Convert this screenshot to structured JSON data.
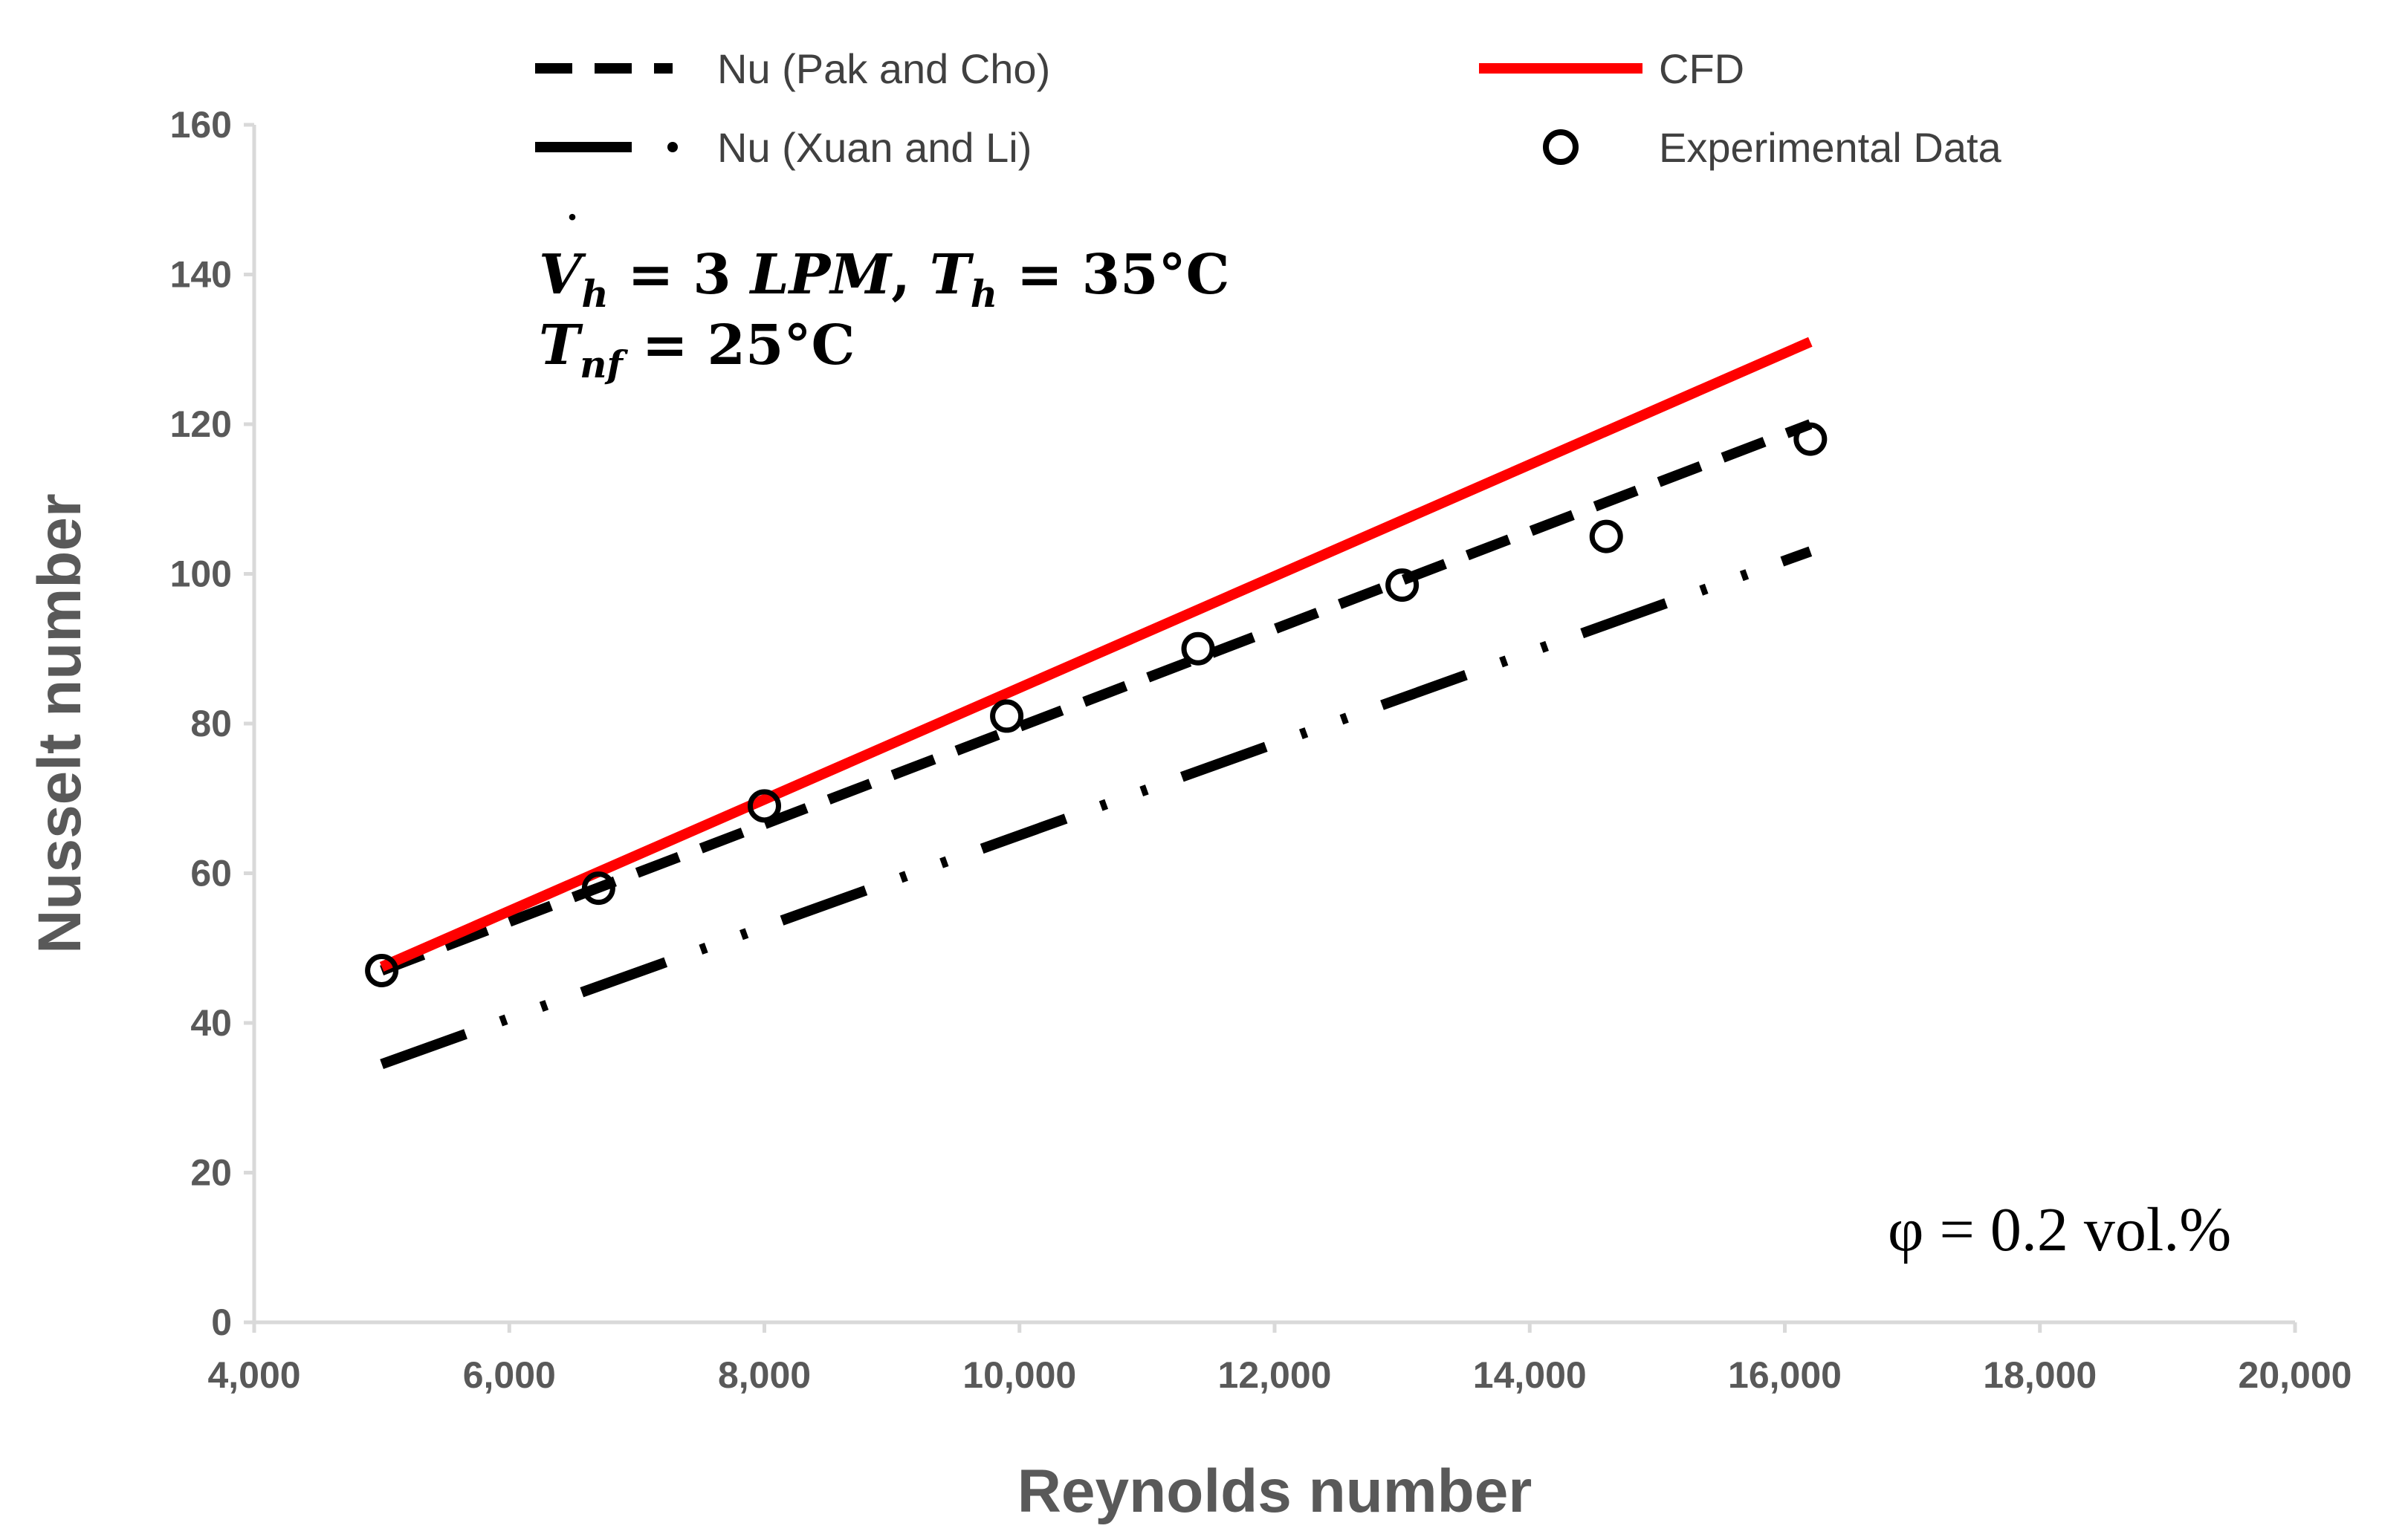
{
  "chart_data": {
    "type": "line",
    "xlabel": "Reynolds number",
    "ylabel": "Nusselt number",
    "xlim": [
      4000,
      20000
    ],
    "ylim": [
      0,
      160
    ],
    "x_ticks": [
      4000,
      6000,
      8000,
      10000,
      12000,
      14000,
      16000,
      18000,
      20000
    ],
    "x_tick_labels": [
      "4,000",
      "6,000",
      "8,000",
      "10,000",
      "12,000",
      "14,000",
      "16,000",
      "18,000",
      "20,000"
    ],
    "y_ticks": [
      0,
      20,
      40,
      60,
      80,
      100,
      120,
      140,
      160
    ],
    "y_tick_labels": [
      "0",
      "20",
      "40",
      "60",
      "80",
      "100",
      "120",
      "140",
      "160"
    ],
    "grid": false,
    "series": [
      {
        "name": "Nu (Pak and Cho)",
        "style": "dashed",
        "color": "#000000",
        "x": [
          5000,
          16200
        ],
        "y": [
          47,
          120
        ]
      },
      {
        "name": "Nu (Xuan and Li)",
        "style": "dash-dot",
        "color": "#000000",
        "x": [
          5000,
          16200
        ],
        "y": [
          34.5,
          103
        ]
      },
      {
        "name": "CFD",
        "style": "solid",
        "color": "#ff0000",
        "x": [
          5000,
          16200
        ],
        "y": [
          47.5,
          131
        ]
      },
      {
        "name": "Experimental Data",
        "style": "markers",
        "color": "#000000",
        "x": [
          5000,
          6700,
          8000,
          9900,
          11400,
          13000,
          14600,
          16200
        ],
        "y": [
          47,
          58,
          69,
          81,
          90,
          98.5,
          105,
          118
        ]
      }
    ],
    "annotations": {
      "condition_line1": {
        "v": "V",
        "v_sub": "h",
        "eq1": " = 3 ",
        "unit1": "LPM",
        "comma": ", ",
        "t": "T",
        "t_sub": "h",
        "eq2": " = 35°C"
      },
      "condition_line2": {
        "t": "T",
        "t_sub": "nf",
        "eq": " = 25°C"
      },
      "concentration": "φ = 0.2 vol.%"
    },
    "legend_position": "top"
  },
  "colors": {
    "axis": "#d9d9d9",
    "tick_text": "#595959",
    "cfd": "#ff0000",
    "correlation": "#000000"
  }
}
